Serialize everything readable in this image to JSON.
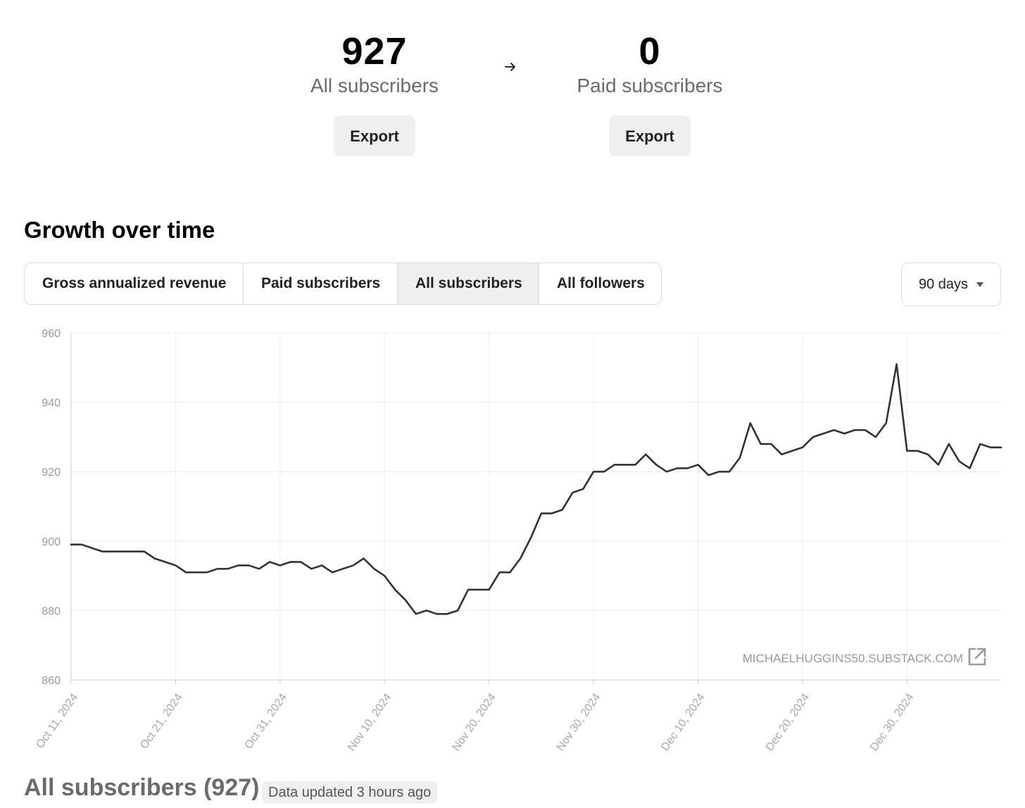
{
  "summary": {
    "all_subscribers": {
      "value": "927",
      "label": "All subscribers",
      "export_label": "Export"
    },
    "paid_subscribers": {
      "value": "0",
      "label": "Paid subscribers",
      "export_label": "Export"
    },
    "arrow_icon": "arrow-right-icon"
  },
  "growth": {
    "title": "Growth over time",
    "tabs": [
      {
        "label": "Gross annualized revenue",
        "active": false
      },
      {
        "label": "Paid subscribers",
        "active": false
      },
      {
        "label": "All subscribers",
        "active": true
      },
      {
        "label": "All followers",
        "active": false
      }
    ],
    "range": {
      "selected": "90 days"
    },
    "watermark": "MICHAELHUGGINS50.SUBSTACK.COM",
    "watermark_icon": "external-link-icon"
  },
  "chart_data": {
    "type": "line",
    "title": "",
    "xlabel": "",
    "ylabel": "",
    "ylim": [
      860,
      960
    ],
    "yticks": [
      960,
      940,
      920,
      900,
      880,
      860
    ],
    "xlim": [
      "2024-10-11",
      "2025-01-08"
    ],
    "xticks": [
      "Oct 11, 2024",
      "Oct 21, 2024",
      "Oct 31, 2024",
      "Nov 10, 2024",
      "Nov 20, 2024",
      "Nov 30, 2024",
      "Dec 10, 2024",
      "Dec 20, 2024",
      "Dec 30, 2024"
    ],
    "grid": true,
    "series": [
      {
        "color": "#333333",
        "points": [
          [
            "2024-10-11",
            899
          ],
          [
            "2024-10-12",
            899
          ],
          [
            "2024-10-13",
            898
          ],
          [
            "2024-10-14",
            897
          ],
          [
            "2024-10-15",
            897
          ],
          [
            "2024-10-16",
            897
          ],
          [
            "2024-10-17",
            897
          ],
          [
            "2024-10-18",
            897
          ],
          [
            "2024-10-19",
            895
          ],
          [
            "2024-10-20",
            894
          ],
          [
            "2024-10-21",
            893
          ],
          [
            "2024-10-22",
            891
          ],
          [
            "2024-10-23",
            891
          ],
          [
            "2024-10-24",
            891
          ],
          [
            "2024-10-25",
            892
          ],
          [
            "2024-10-26",
            892
          ],
          [
            "2024-10-27",
            893
          ],
          [
            "2024-10-28",
            893
          ],
          [
            "2024-10-29",
            892
          ],
          [
            "2024-10-30",
            894
          ],
          [
            "2024-10-31",
            893
          ],
          [
            "2024-11-01",
            894
          ],
          [
            "2024-11-02",
            894
          ],
          [
            "2024-11-03",
            892
          ],
          [
            "2024-11-04",
            893
          ],
          [
            "2024-11-05",
            891
          ],
          [
            "2024-11-06",
            892
          ],
          [
            "2024-11-07",
            893
          ],
          [
            "2024-11-08",
            895
          ],
          [
            "2024-11-09",
            892
          ],
          [
            "2024-11-10",
            890
          ],
          [
            "2024-11-11",
            886
          ],
          [
            "2024-11-12",
            883
          ],
          [
            "2024-11-13",
            879
          ],
          [
            "2024-11-14",
            880
          ],
          [
            "2024-11-15",
            879
          ],
          [
            "2024-11-16",
            879
          ],
          [
            "2024-11-17",
            880
          ],
          [
            "2024-11-18",
            886
          ],
          [
            "2024-11-19",
            886
          ],
          [
            "2024-11-20",
            886
          ],
          [
            "2024-11-21",
            891
          ],
          [
            "2024-11-22",
            891
          ],
          [
            "2024-11-23",
            895
          ],
          [
            "2024-11-24",
            901
          ],
          [
            "2024-11-25",
            908
          ],
          [
            "2024-11-26",
            908
          ],
          [
            "2024-11-27",
            909
          ],
          [
            "2024-11-28",
            914
          ],
          [
            "2024-11-29",
            915
          ],
          [
            "2024-11-30",
            920
          ],
          [
            "2024-12-01",
            920
          ],
          [
            "2024-12-02",
            922
          ],
          [
            "2024-12-03",
            922
          ],
          [
            "2024-12-04",
            922
          ],
          [
            "2024-12-05",
            925
          ],
          [
            "2024-12-06",
            922
          ],
          [
            "2024-12-07",
            920
          ],
          [
            "2024-12-08",
            921
          ],
          [
            "2024-12-09",
            921
          ],
          [
            "2024-12-10",
            922
          ],
          [
            "2024-12-11",
            919
          ],
          [
            "2024-12-12",
            920
          ],
          [
            "2024-12-13",
            920
          ],
          [
            "2024-12-14",
            924
          ],
          [
            "2024-12-15",
            934
          ],
          [
            "2024-12-16",
            928
          ],
          [
            "2024-12-17",
            928
          ],
          [
            "2024-12-18",
            925
          ],
          [
            "2024-12-19",
            926
          ],
          [
            "2024-12-20",
            927
          ],
          [
            "2024-12-21",
            930
          ],
          [
            "2024-12-22",
            931
          ],
          [
            "2024-12-23",
            932
          ],
          [
            "2024-12-24",
            931
          ],
          [
            "2024-12-25",
            932
          ],
          [
            "2024-12-26",
            932
          ],
          [
            "2024-12-27",
            930
          ],
          [
            "2024-12-28",
            934
          ],
          [
            "2024-12-29",
            951
          ],
          [
            "2024-12-30",
            926
          ],
          [
            "2024-12-31",
            926
          ],
          [
            "2025-01-01",
            925
          ],
          [
            "2025-01-02",
            922
          ],
          [
            "2025-01-03",
            928
          ],
          [
            "2025-01-04",
            923
          ],
          [
            "2025-01-05",
            921
          ],
          [
            "2025-01-06",
            928
          ],
          [
            "2025-01-07",
            927
          ],
          [
            "2025-01-08",
            927
          ]
        ]
      }
    ]
  },
  "footer": {
    "title": "All subscribers (927)",
    "badge": "Data updated 3 hours ago"
  }
}
